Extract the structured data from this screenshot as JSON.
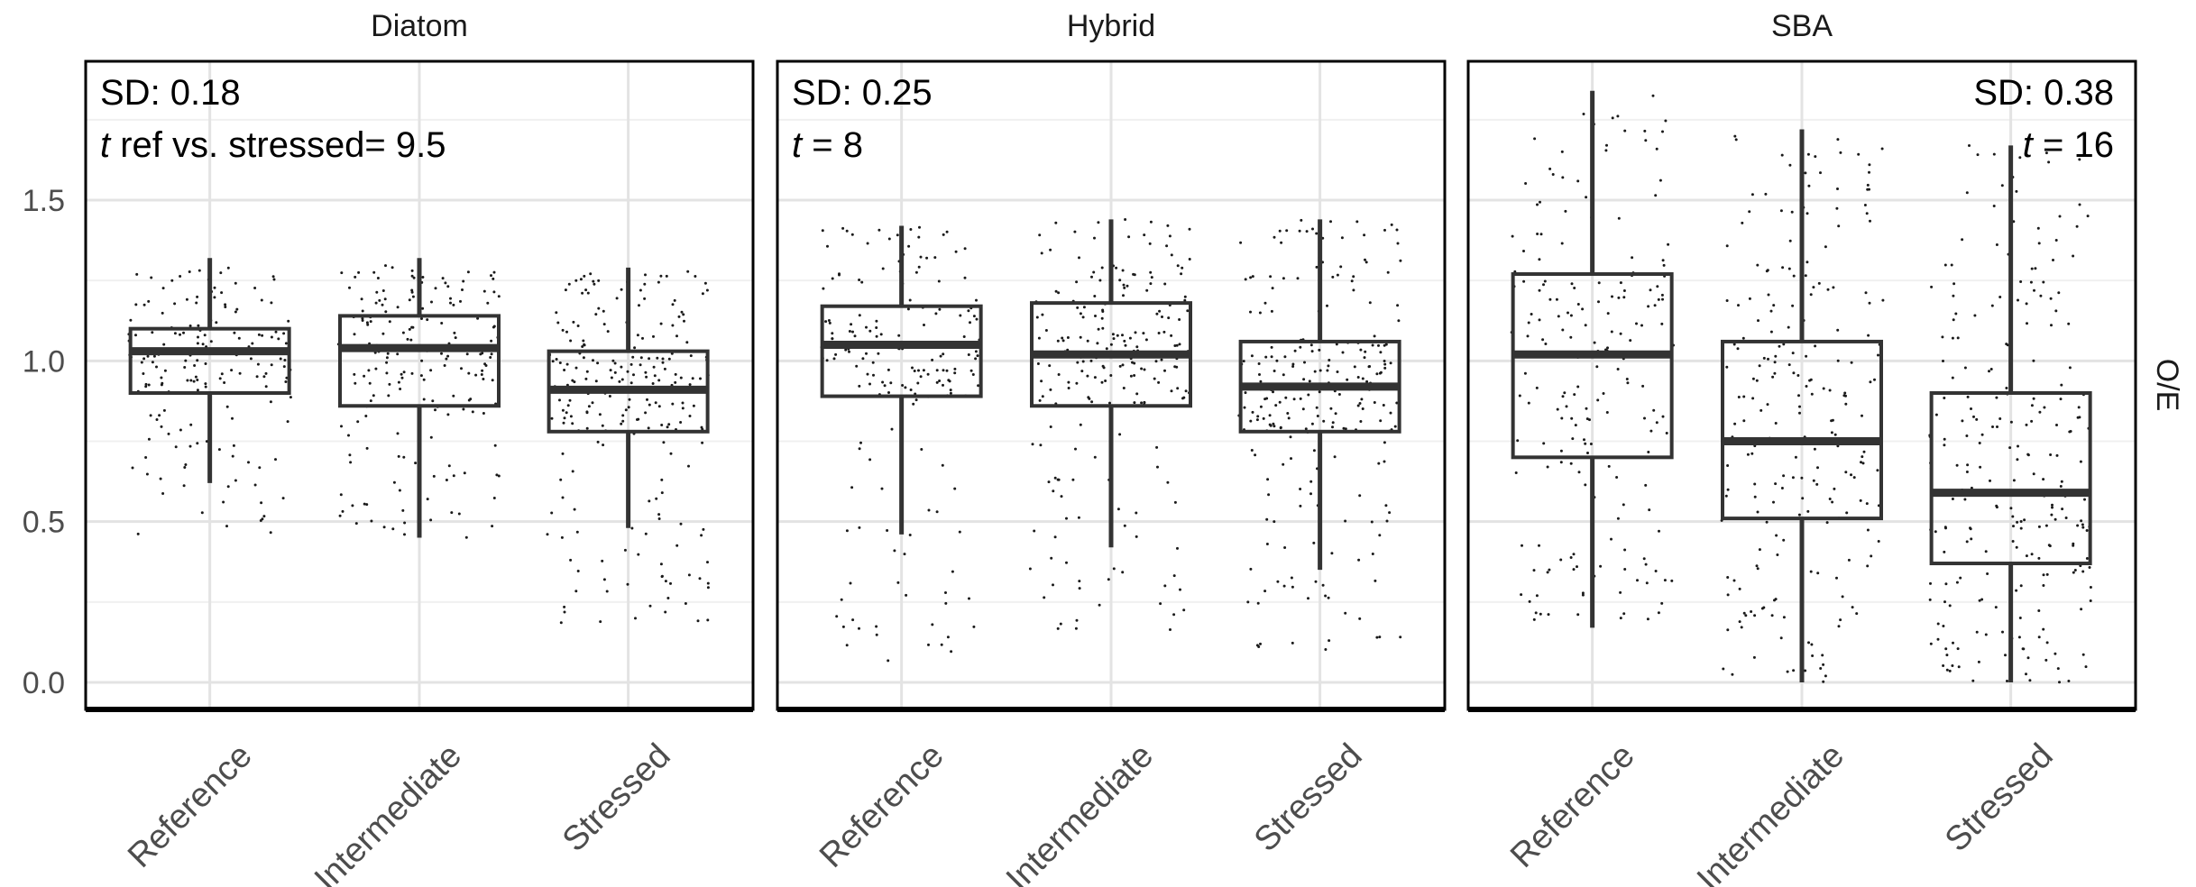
{
  "chart_data": {
    "type": "boxplot",
    "y_label": "O/E",
    "ylim": [
      -0.1,
      1.93
    ],
    "y_ticks": [
      "0.0",
      "0.5",
      "1.0",
      "1.5"
    ],
    "categories": [
      "Reference",
      "Intermediate",
      "Stressed"
    ],
    "grid": true,
    "point_color": "#1a1a1a",
    "box_color": "#333333",
    "panels": [
      {
        "title": "Diatom",
        "annotation_align": "left",
        "annotation": {
          "sd": "SD: 0.18",
          "t_symbol": "t",
          "t_text": " ref vs. stressed= 9.5"
        },
        "boxes": [
          {
            "category": "Reference",
            "min": 0.62,
            "q1": 0.9,
            "median": 1.03,
            "q3": 1.1,
            "max": 1.32,
            "pts_min": 0.45,
            "pts_max": 1.3,
            "n_points": 170
          },
          {
            "category": "Intermediate",
            "min": 0.45,
            "q1": 0.86,
            "median": 1.04,
            "q3": 1.14,
            "max": 1.32,
            "pts_min": 0.45,
            "pts_max": 1.32,
            "n_points": 200
          },
          {
            "category": "Stressed",
            "min": 0.48,
            "q1": 0.78,
            "median": 0.91,
            "q3": 1.03,
            "max": 1.29,
            "pts_min": 0.18,
            "pts_max": 1.28,
            "n_points": 230
          }
        ]
      },
      {
        "title": "Hybrid",
        "annotation_align": "left",
        "annotation": {
          "sd": "SD: 0.25",
          "t_symbol": "t",
          "t_text": " = 8"
        },
        "boxes": [
          {
            "category": "Reference",
            "min": 0.46,
            "q1": 0.89,
            "median": 1.05,
            "q3": 1.17,
            "max": 1.42,
            "pts_min": 0.0,
            "pts_max": 1.42,
            "n_points": 180
          },
          {
            "category": "Intermediate",
            "min": 0.42,
            "q1": 0.86,
            "median": 1.02,
            "q3": 1.18,
            "max": 1.44,
            "pts_min": 0.15,
            "pts_max": 1.44,
            "n_points": 220
          },
          {
            "category": "Stressed",
            "min": 0.35,
            "q1": 0.78,
            "median": 0.92,
            "q3": 1.06,
            "max": 1.44,
            "pts_min": 0.1,
            "pts_max": 1.44,
            "n_points": 240
          }
        ]
      },
      {
        "title": "SBA",
        "annotation_align": "right",
        "annotation": {
          "sd": "SD: 0.38",
          "t_symbol": "t",
          "t_text": " = 16"
        },
        "boxes": [
          {
            "category": "Reference",
            "min": 0.17,
            "q1": 0.7,
            "median": 1.02,
            "q3": 1.27,
            "max": 1.84,
            "pts_min": 0.15,
            "pts_max": 1.85,
            "n_points": 190
          },
          {
            "category": "Intermediate",
            "min": 0.0,
            "q1": 0.51,
            "median": 0.75,
            "q3": 1.06,
            "max": 1.72,
            "pts_min": 0.0,
            "pts_max": 1.72,
            "n_points": 220
          },
          {
            "category": "Stressed",
            "min": 0.0,
            "q1": 0.37,
            "median": 0.59,
            "q3": 0.9,
            "max": 1.67,
            "pts_min": 0.0,
            "pts_max": 1.67,
            "n_points": 240
          }
        ]
      }
    ]
  }
}
